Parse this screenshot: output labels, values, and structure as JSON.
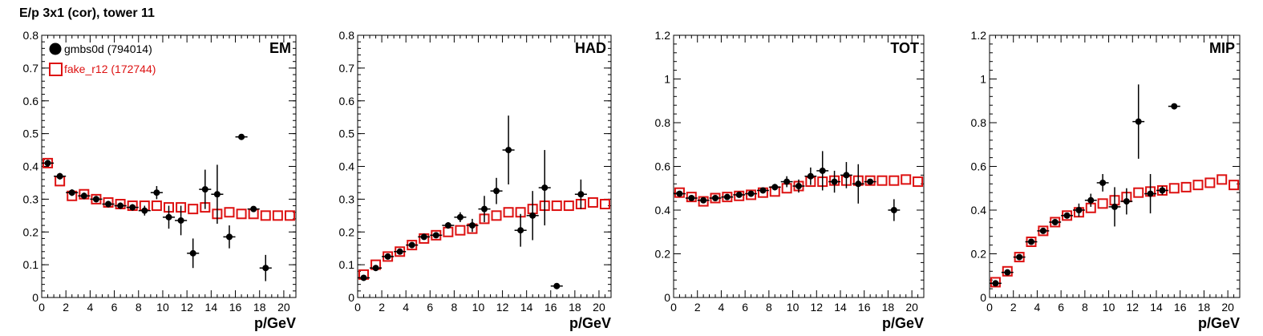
{
  "title": "E/p 3x1 (cor), tower 11",
  "colors": {
    "black": "#000000",
    "red": "#dd1111"
  },
  "legend": {
    "series": [
      {
        "name": "gmbs0d (794014)",
        "marker": "filled-circle",
        "color": "#000000"
      },
      {
        "name": "fake_r12 (172744)",
        "marker": "open-square",
        "color": "#dd1111"
      }
    ]
  },
  "chart_data": [
    {
      "type": "scatter",
      "panel_label": "EM",
      "xlabel": "p/GeV",
      "xlim": [
        0,
        21
      ],
      "ylim": [
        0,
        0.8
      ],
      "xticks": [
        0,
        2,
        4,
        6,
        8,
        10,
        12,
        14,
        16,
        18,
        20
      ],
      "yticks": [
        0,
        0.1,
        0.2,
        0.3,
        0.4,
        0.5,
        0.6,
        0.7,
        0.8
      ],
      "series": [
        {
          "name": "gmbs0d (794014)",
          "x": [
            0.5,
            1.5,
            2.5,
            3.5,
            4.5,
            5.5,
            6.5,
            7.5,
            8.5,
            9.5,
            10.5,
            11.5,
            12.5,
            13.5,
            14.5,
            15.5,
            16.5,
            17.5,
            18.5
          ],
          "y": [
            0.41,
            0.37,
            0.32,
            0.31,
            0.3,
            0.285,
            0.28,
            0.275,
            0.265,
            0.32,
            0.245,
            0.235,
            0.135,
            0.33,
            0.315,
            0.185,
            0.49,
            0.27,
            0.09
          ],
          "yerr": [
            0.01,
            0.01,
            0.01,
            0.01,
            0.01,
            0.01,
            0.01,
            0.01,
            0.015,
            0.02,
            0.035,
            0.045,
            0.045,
            0.06,
            0.09,
            0.035,
            0.0,
            0.0,
            0.04
          ]
        },
        {
          "name": "fake_r12 (172744)",
          "x": [
            0.5,
            1.5,
            2.5,
            3.5,
            4.5,
            5.5,
            6.5,
            7.5,
            8.5,
            9.5,
            10.5,
            11.5,
            12.5,
            13.5,
            14.5,
            15.5,
            16.5,
            17.5,
            18.5,
            19.5,
            20.5
          ],
          "y": [
            0.41,
            0.355,
            0.31,
            0.315,
            0.3,
            0.29,
            0.285,
            0.28,
            0.28,
            0.28,
            0.275,
            0.275,
            0.27,
            0.275,
            0.255,
            0.26,
            0.255,
            0.255,
            0.25,
            0.25,
            0.25
          ]
        }
      ]
    },
    {
      "type": "scatter",
      "panel_label": "HAD",
      "xlabel": "p/GeV",
      "xlim": [
        0,
        21
      ],
      "ylim": [
        0,
        0.8
      ],
      "xticks": [
        0,
        2,
        4,
        6,
        8,
        10,
        12,
        14,
        16,
        18,
        20
      ],
      "yticks": [
        0,
        0.1,
        0.2,
        0.3,
        0.4,
        0.5,
        0.6,
        0.7,
        0.8
      ],
      "series": [
        {
          "name": "gmbs0d (794014)",
          "x": [
            0.5,
            1.5,
            2.5,
            3.5,
            4.5,
            5.5,
            6.5,
            7.5,
            8.5,
            9.5,
            10.5,
            11.5,
            12.5,
            13.5,
            14.5,
            15.5,
            16.5,
            18.5
          ],
          "y": [
            0.06,
            0.09,
            0.125,
            0.14,
            0.16,
            0.185,
            0.19,
            0.22,
            0.245,
            0.22,
            0.27,
            0.325,
            0.45,
            0.205,
            0.25,
            0.335,
            0.035,
            0.315
          ],
          "yerr": [
            0.005,
            0.005,
            0.005,
            0.005,
            0.005,
            0.005,
            0.005,
            0.01,
            0.015,
            0.02,
            0.04,
            0.04,
            0.105,
            0.05,
            0.075,
            0.115,
            0.0,
            0.045
          ]
        },
        {
          "name": "fake_r12 (172744)",
          "x": [
            0.5,
            1.5,
            2.5,
            3.5,
            4.5,
            5.5,
            6.5,
            7.5,
            8.5,
            9.5,
            10.5,
            11.5,
            12.5,
            13.5,
            14.5,
            15.5,
            16.5,
            17.5,
            18.5,
            19.5,
            20.5
          ],
          "y": [
            0.07,
            0.1,
            0.125,
            0.14,
            0.16,
            0.18,
            0.19,
            0.2,
            0.205,
            0.21,
            0.24,
            0.25,
            0.26,
            0.26,
            0.27,
            0.28,
            0.28,
            0.28,
            0.285,
            0.29,
            0.285
          ]
        }
      ]
    },
    {
      "type": "scatter",
      "panel_label": "TOT",
      "xlabel": "p/GeV",
      "xlim": [
        0,
        21
      ],
      "ylim": [
        0,
        1.2
      ],
      "xticks": [
        0,
        2,
        4,
        6,
        8,
        10,
        12,
        14,
        16,
        18,
        20
      ],
      "yticks": [
        0,
        0.2,
        0.4,
        0.6,
        0.8,
        1,
        1.2
      ],
      "series": [
        {
          "name": "gmbs0d (794014)",
          "x": [
            0.5,
            1.5,
            2.5,
            3.5,
            4.5,
            5.5,
            6.5,
            7.5,
            8.5,
            9.5,
            10.5,
            11.5,
            12.5,
            13.5,
            14.5,
            15.5,
            16.5,
            18.5
          ],
          "y": [
            0.475,
            0.455,
            0.445,
            0.455,
            0.46,
            0.47,
            0.475,
            0.49,
            0.505,
            0.53,
            0.51,
            0.555,
            0.58,
            0.53,
            0.56,
            0.52,
            0.53,
            0.4
          ],
          "yerr": [
            0.01,
            0.01,
            0.01,
            0.01,
            0.01,
            0.01,
            0.01,
            0.01,
            0.015,
            0.025,
            0.03,
            0.04,
            0.09,
            0.05,
            0.06,
            0.09,
            0.0,
            0.05
          ]
        },
        {
          "name": "fake_r12 (172744)",
          "x": [
            0.5,
            1.5,
            2.5,
            3.5,
            4.5,
            5.5,
            6.5,
            7.5,
            8.5,
            9.5,
            10.5,
            11.5,
            12.5,
            13.5,
            14.5,
            15.5,
            16.5,
            17.5,
            18.5,
            19.5,
            20.5
          ],
          "y": [
            0.48,
            0.46,
            0.44,
            0.455,
            0.46,
            0.465,
            0.47,
            0.48,
            0.485,
            0.5,
            0.51,
            0.53,
            0.53,
            0.535,
            0.535,
            0.535,
            0.535,
            0.535,
            0.535,
            0.54,
            0.53
          ]
        }
      ]
    },
    {
      "type": "scatter",
      "panel_label": "MIP",
      "xlabel": "p/GeV",
      "xlim": [
        0,
        21
      ],
      "ylim": [
        0,
        1.2
      ],
      "xticks": [
        0,
        2,
        4,
        6,
        8,
        10,
        12,
        14,
        16,
        18,
        20
      ],
      "yticks": [
        0,
        0.2,
        0.4,
        0.6,
        0.8,
        1,
        1.2
      ],
      "series": [
        {
          "name": "gmbs0d (794014)",
          "x": [
            0.5,
            1.5,
            2.5,
            3.5,
            4.5,
            5.5,
            6.5,
            7.5,
            8.5,
            9.5,
            10.5,
            11.5,
            12.5,
            13.5,
            14.5,
            15.5
          ],
          "y": [
            0.065,
            0.115,
            0.185,
            0.255,
            0.305,
            0.345,
            0.375,
            0.4,
            0.445,
            0.525,
            0.415,
            0.44,
            0.805,
            0.475,
            0.49,
            0.875
          ],
          "yerr": [
            0.005,
            0.005,
            0.005,
            0.005,
            0.01,
            0.01,
            0.01,
            0.03,
            0.03,
            0.04,
            0.09,
            0.06,
            0.17,
            0.09,
            0.02,
            0.0
          ]
        },
        {
          "name": "fake_r12 (172744)",
          "x": [
            0.5,
            1.5,
            2.5,
            3.5,
            4.5,
            5.5,
            6.5,
            7.5,
            8.5,
            9.5,
            10.5,
            11.5,
            12.5,
            13.5,
            14.5,
            15.5,
            16.5,
            17.5,
            18.5,
            19.5,
            20.5
          ],
          "y": [
            0.07,
            0.12,
            0.185,
            0.255,
            0.305,
            0.345,
            0.375,
            0.39,
            0.41,
            0.43,
            0.445,
            0.46,
            0.48,
            0.485,
            0.49,
            0.5,
            0.505,
            0.515,
            0.525,
            0.54,
            0.515
          ]
        }
      ]
    }
  ]
}
